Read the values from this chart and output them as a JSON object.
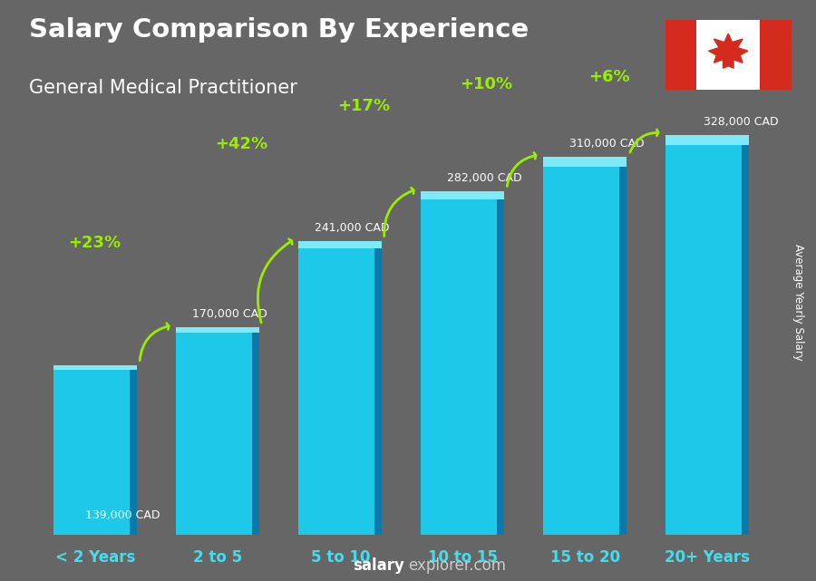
{
  "title": "Salary Comparison By Experience",
  "subtitle": "General Medical Practitioner",
  "categories": [
    "< 2 Years",
    "2 to 5",
    "5 to 10",
    "10 to 15",
    "15 to 20",
    "20+ Years"
  ],
  "values": [
    139000,
    170000,
    241000,
    282000,
    310000,
    328000
  ],
  "salary_labels": [
    "139,000 CAD",
    "170,000 CAD",
    "241,000 CAD",
    "282,000 CAD",
    "310,000 CAD",
    "328,000 CAD"
  ],
  "pct_changes": [
    "+23%",
    "+42%",
    "+17%",
    "+10%",
    "+6%"
  ],
  "bar_face_color": "#1EC8E8",
  "bar_right_color": "#0A7AAA",
  "bar_top_color": "#7EEAF8",
  "bg_color": "#666666",
  "title_color": "#ffffff",
  "subtitle_color": "#ffffff",
  "salary_color": "#ffffff",
  "pct_color": "#99EE00",
  "xlabel_color": "#44DDEE",
  "ylabel_text": "Average Yearly Salary",
  "footer_salary": "salary",
  "footer_explorer": "explorer",
  "footer_com": ".com",
  "ylim": [
    0,
    420000
  ],
  "bar_width": 0.62,
  "figsize": [
    9.0,
    6.41
  ],
  "dpi": 100
}
